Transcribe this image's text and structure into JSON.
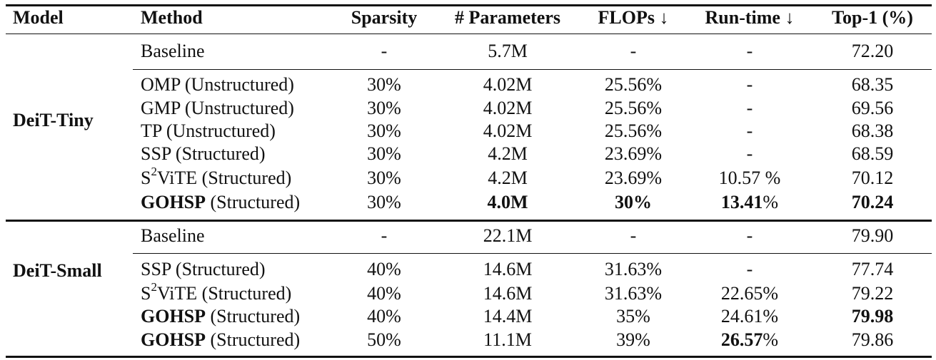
{
  "table": {
    "headers": {
      "model": "Model",
      "method": "Method",
      "sparsity": "Sparsity",
      "params": "# Parameters",
      "flops": "FLOPs ↓",
      "runtime": "Run-time ↓",
      "top1": "Top-1 (%)"
    },
    "groups": [
      {
        "model": "DeiT-Tiny",
        "rows": [
          {
            "method": "Baseline",
            "sparsity": "-",
            "params": "5.7M",
            "flops": "-",
            "runtime": "-",
            "top1": "72.20"
          },
          {
            "method": "OMP (Unstructured)",
            "sparsity": "30%",
            "params": "4.02M",
            "flops": "25.56%",
            "runtime": "-",
            "top1": "68.35"
          },
          {
            "method": "GMP (Unstructured)",
            "sparsity": "30%",
            "params": "4.02M",
            "flops": "25.56%",
            "runtime": "-",
            "top1": "69.56"
          },
          {
            "method": "TP (Unstructured)",
            "sparsity": "30%",
            "params": "4.02M",
            "flops": "25.56%",
            "runtime": "-",
            "top1": "68.38"
          },
          {
            "method": "SSP (Structured)",
            "sparsity": "30%",
            "params": "4.2M",
            "flops": "23.69%",
            "runtime": "-",
            "top1": "68.59"
          },
          {
            "method_base": "S",
            "method_sup": "2",
            "method_rest": "ViTE (Structured)",
            "sparsity": "30%",
            "params": "4.2M",
            "flops": "23.69%",
            "runtime": "10.57 %",
            "top1": "70.12"
          },
          {
            "method_bold": "GOHSP",
            "method_rest": " (Structured)",
            "sparsity": "30%",
            "params": "4.0M",
            "flops": "30%",
            "runtime_bold": "13.41",
            "runtime_rest": "%",
            "top1": "70.24"
          }
        ]
      },
      {
        "model": "DeiT-Small",
        "rows": [
          {
            "method": "Baseline",
            "sparsity": "-",
            "params": "22.1M",
            "flops": "-",
            "runtime": "-",
            "top1": "79.90"
          },
          {
            "method": "SSP (Structured)",
            "sparsity": "40%",
            "params": "14.6M",
            "flops": "31.63%",
            "runtime": "-",
            "top1": "77.74"
          },
          {
            "method_base": "S",
            "method_sup": "2",
            "method_rest": "ViTE (Structured)",
            "sparsity": "40%",
            "params": "14.6M",
            "flops": "31.63%",
            "runtime": "22.65%",
            "top1": "79.22"
          },
          {
            "method_bold": "GOHSP",
            "method_rest": " (Structured)",
            "sparsity": "40%",
            "params": "14.4M",
            "flops": "35%",
            "runtime": "24.61%",
            "top1": "79.98"
          },
          {
            "method_bold": "GOHSP",
            "method_rest": " (Structured)",
            "sparsity": "50%",
            "params": "11.1M",
            "flops": "39%",
            "runtime_bold": "26.57",
            "runtime_rest": "%",
            "top1": "79.86"
          }
        ]
      }
    ]
  }
}
